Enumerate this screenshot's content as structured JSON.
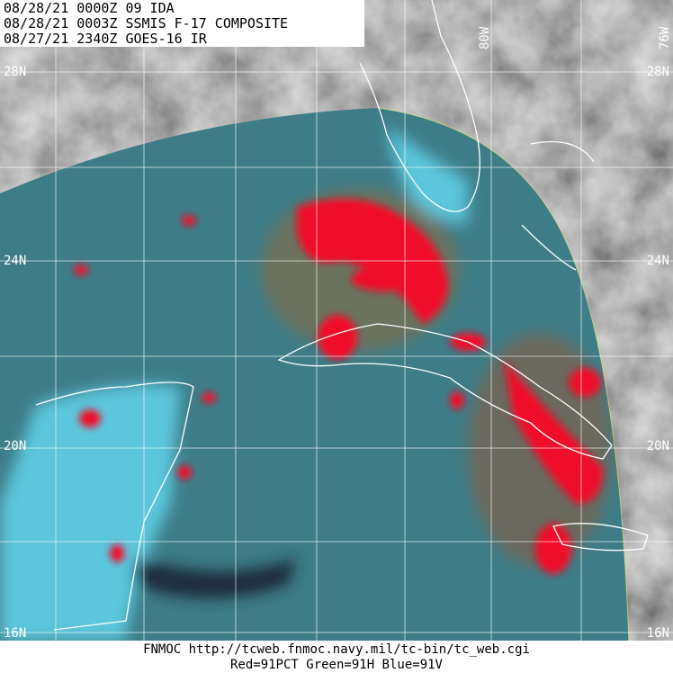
{
  "header": {
    "lines": [
      "08/28/21 0000Z  09 IDA",
      "08/28/21 0003Z  SSMIS F-17 COMPOSITE",
      "08/27/21 2340Z  GOES-16 IR"
    ]
  },
  "lat_labels": {
    "left": [
      "28N",
      "24N",
      "20N",
      "16N"
    ],
    "right": [
      "28N",
      "24N",
      "20N",
      "16N"
    ]
  },
  "lon_labels": [
    "80W",
    "76W"
  ],
  "footer": {
    "source": "FNMOC  http://tcweb.fnmoc.navy.mil/tc-bin/tc_web.cgi",
    "channels": "Red=91PCT  Green=91H  Blue=91V"
  }
}
